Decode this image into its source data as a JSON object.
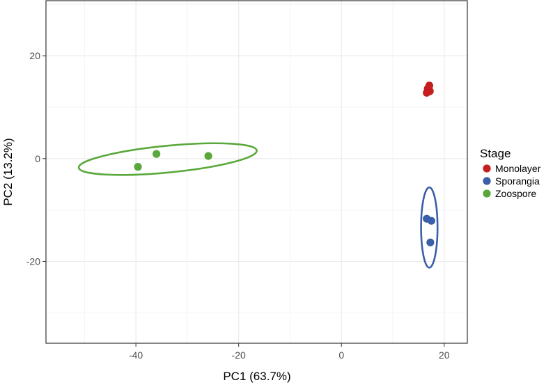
{
  "chart_data": {
    "type": "scatter",
    "xlabel": "PC1 (63.7%)",
    "ylabel": "PC2 (13.2%)",
    "xlim": [
      -57.5,
      24.5
    ],
    "ylim": [
      -35.9,
      30.7
    ],
    "x_ticks": [
      -40,
      -20,
      0,
      20
    ],
    "y_ticks": [
      -20,
      0,
      20
    ],
    "x_tick_labels": [
      "-40",
      "-20",
      "0",
      "20"
    ],
    "y_tick_labels": [
      "-20",
      "0",
      "20"
    ],
    "grid": true,
    "legend": {
      "title": "Stage",
      "placement": "right"
    },
    "series": [
      {
        "name": "Monolayer",
        "color": "#c41e1e",
        "points": [
          {
            "x": 17.1,
            "y": 14.2
          },
          {
            "x": 16.8,
            "y": 13.6
          },
          {
            "x": 17.2,
            "y": 13.1
          },
          {
            "x": 16.6,
            "y": 12.8
          }
        ],
        "ellipse": null
      },
      {
        "name": "Sporangia",
        "color": "#3a5ea8",
        "points": [
          {
            "x": 16.6,
            "y": -11.7
          },
          {
            "x": 17.5,
            "y": -12.1
          },
          {
            "x": 17.3,
            "y": -16.3
          }
        ],
        "ellipse": {
          "cx": 17.1,
          "cy": -13.4,
          "rx_data": 1.6,
          "ry_data": 7.8,
          "angle_deg": 0
        }
      },
      {
        "name": "Zoospore",
        "color": "#5aa83c",
        "points": [
          {
            "x": -39.6,
            "y": -1.6
          },
          {
            "x": -36.0,
            "y": 0.9
          },
          {
            "x": -25.9,
            "y": 0.5
          }
        ],
        "ellipse": {
          "cx": -33.8,
          "cy": -0.1,
          "rx_data": 17.4,
          "ry_data": 2.6,
          "angle_deg": -5.5
        }
      }
    ]
  }
}
